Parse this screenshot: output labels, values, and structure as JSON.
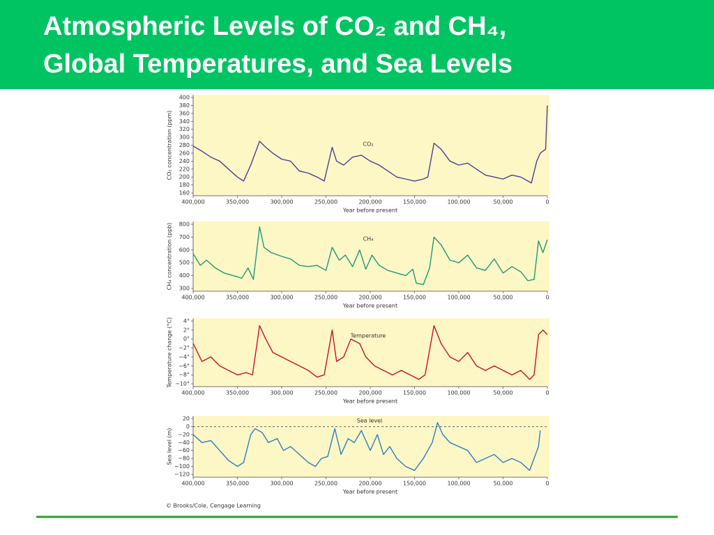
{
  "slide": {
    "title": [
      "Atmospheric Levels of CO₂ and CH₄,",
      "Global Temperatures, and Sea Levels"
    ],
    "credit": "© Brooks/Cole, Cengage Learning"
  },
  "chart_data": [
    {
      "type": "line",
      "ylabel": "CO₂ concentration (ppm)",
      "xlabel": "Year before present",
      "xlim": [
        400000,
        0
      ],
      "ylim": [
        160,
        400
      ],
      "xticks": [
        {
          "value": 400000,
          "label": "400,000"
        },
        {
          "value": 350000,
          "label": "350,000"
        },
        {
          "value": 300000,
          "label": "300,000"
        },
        {
          "value": 250000,
          "label": "250,000"
        },
        {
          "value": 200000,
          "label": "200,000"
        },
        {
          "value": 150000,
          "label": "150,000"
        },
        {
          "value": 100000,
          "label": "100,000"
        },
        {
          "value": 50000,
          "label": "50,000"
        },
        0
      ],
      "yticks": [
        160,
        180,
        200,
        220,
        240,
        260,
        280,
        300,
        320,
        340,
        360,
        380,
        400
      ],
      "x": [
        400000,
        390000,
        380000,
        370000,
        360000,
        350000,
        343000,
        335000,
        325000,
        318000,
        310000,
        300000,
        290000,
        280000,
        270000,
        260000,
        252000,
        243000,
        238000,
        230000,
        220000,
        210000,
        200000,
        190000,
        180000,
        170000,
        160000,
        150000,
        140000,
        135000,
        128000,
        120000,
        110000,
        100000,
        90000,
        80000,
        70000,
        60000,
        50000,
        40000,
        30000,
        22000,
        18000,
        12000,
        8000,
        2000,
        0
      ],
      "series": [
        {
          "name": "CO₂",
          "color": "#4b3f93",
          "values": [
            278,
            265,
            250,
            240,
            220,
            200,
            190,
            230,
            290,
            275,
            260,
            245,
            240,
            215,
            210,
            200,
            190,
            275,
            240,
            230,
            250,
            255,
            240,
            230,
            215,
            200,
            195,
            190,
            195,
            200,
            285,
            270,
            240,
            230,
            235,
            220,
            205,
            200,
            195,
            205,
            200,
            190,
            185,
            240,
            260,
            270,
            380
          ]
        }
      ]
    },
    {
      "type": "line",
      "ylabel": "CH₄ concentration (ppb)",
      "xlabel": "Year before present",
      "xlim": [
        400000,
        0
      ],
      "ylim": [
        300,
        800
      ],
      "xticks": [
        {
          "value": 400000,
          "label": "400,000"
        },
        {
          "value": 350000,
          "label": "350,000"
        },
        {
          "value": 300000,
          "label": "300,000"
        },
        {
          "value": 250000,
          "label": "250,000"
        },
        {
          "value": 200000,
          "label": "200,000"
        },
        {
          "value": 150000,
          "label": "150,000"
        },
        {
          "value": 100000,
          "label": "100,000"
        },
        {
          "value": 50000,
          "label": "50,000"
        },
        0
      ],
      "yticks": [
        300,
        400,
        500,
        600,
        700,
        800
      ],
      "x": [
        400000,
        392000,
        385000,
        375000,
        365000,
        355000,
        345000,
        338000,
        332000,
        325000,
        320000,
        312000,
        300000,
        290000,
        280000,
        270000,
        260000,
        250000,
        243000,
        235000,
        228000,
        220000,
        212000,
        205000,
        198000,
        190000,
        180000,
        170000,
        160000,
        152000,
        148000,
        140000,
        133000,
        128000,
        120000,
        110000,
        100000,
        90000,
        80000,
        70000,
        60000,
        50000,
        40000,
        30000,
        22000,
        15000,
        10000,
        5000,
        0
      ],
      "series": [
        {
          "name": "CH₄",
          "color": "#1c9a78",
          "values": [
            570,
            480,
            520,
            460,
            420,
            400,
            380,
            460,
            370,
            780,
            620,
            580,
            550,
            530,
            480,
            470,
            480,
            440,
            620,
            520,
            560,
            470,
            600,
            450,
            560,
            480,
            440,
            420,
            400,
            450,
            340,
            330,
            460,
            700,
            640,
            520,
            500,
            560,
            460,
            440,
            530,
            420,
            470,
            430,
            360,
            370,
            670,
            580,
            680
          ]
        }
      ]
    },
    {
      "type": "line",
      "ylabel": "Temperature change (°C)",
      "xlabel": "Year before present",
      "xlim": [
        400000,
        0
      ],
      "ylim": [
        -10,
        4
      ],
      "xticks": [
        {
          "value": 400000,
          "label": "400,000"
        },
        {
          "value": 350000,
          "label": "350,000"
        },
        {
          "value": 300000,
          "label": "300,000"
        },
        {
          "value": 250000,
          "label": "250,000"
        },
        {
          "value": 200000,
          "label": "200,000"
        },
        {
          "value": 150000,
          "label": "150,000"
        },
        {
          "value": 100000,
          "label": "100,000"
        },
        {
          "value": 50000,
          "label": "50,000"
        },
        0
      ],
      "yticks": [
        {
          "value": -10,
          "label": "−10°"
        },
        {
          "value": -8,
          "label": "−8°"
        },
        {
          "value": -6,
          "label": "−6°"
        },
        {
          "value": -4,
          "label": "−4°"
        },
        {
          "value": -2,
          "label": "−2°"
        },
        {
          "value": 0,
          "label": "0°"
        },
        {
          "value": 2,
          "label": "2°"
        },
        {
          "value": 4,
          "label": "4°"
        }
      ],
      "x": [
        400000,
        390000,
        380000,
        370000,
        360000,
        350000,
        340000,
        333000,
        325000,
        318000,
        310000,
        300000,
        290000,
        280000,
        270000,
        260000,
        252000,
        243000,
        238000,
        230000,
        222000,
        212000,
        205000,
        195000,
        185000,
        175000,
        165000,
        155000,
        145000,
        138000,
        128000,
        120000,
        110000,
        100000,
        90000,
        80000,
        70000,
        60000,
        50000,
        40000,
        30000,
        20000,
        15000,
        10000,
        5000,
        0
      ],
      "series": [
        {
          "name": "Temperature",
          "color": "#c8102e",
          "values": [
            -1,
            -5,
            -4,
            -6,
            -7,
            -8,
            -7.5,
            -8,
            3,
            0,
            -3,
            -4,
            -5,
            -6,
            -7,
            -8.5,
            -8,
            2,
            -5,
            -4,
            0,
            -1,
            -4,
            -6,
            -7,
            -8,
            -7,
            -8,
            -9,
            -8,
            3,
            -1,
            -4,
            -5,
            -3,
            -6,
            -7,
            -6,
            -7,
            -8,
            -7,
            -9,
            -8,
            1,
            2,
            1
          ]
        }
      ]
    },
    {
      "type": "line",
      "ylabel": "Sea level (m)",
      "xlabel": "Year before present",
      "xlim": [
        400000,
        0
      ],
      "ylim": [
        -120,
        20
      ],
      "hline": 0,
      "xticks": [
        {
          "value": 400000,
          "label": "400,000"
        },
        {
          "value": 350000,
          "label": "350,000"
        },
        {
          "value": 300000,
          "label": "300,000"
        },
        {
          "value": 250000,
          "label": "250,000"
        },
        {
          "value": 200000,
          "label": "200,000"
        },
        {
          "value": 150000,
          "label": "150,000"
        },
        {
          "value": 100000,
          "label": "100,000"
        },
        {
          "value": 50000,
          "label": "50,000"
        },
        0
      ],
      "yticks": [
        {
          "value": -120,
          "label": "−120"
        },
        {
          "value": -100,
          "label": "−100"
        },
        {
          "value": -80,
          "label": "−80"
        },
        {
          "value": -60,
          "label": "−60"
        },
        {
          "value": -40,
          "label": "−40"
        },
        {
          "value": -20,
          "label": "−20"
        },
        0,
        20
      ],
      "x": [
        400000,
        390000,
        380000,
        370000,
        360000,
        350000,
        343000,
        335000,
        330000,
        322000,
        315000,
        305000,
        298000,
        290000,
        280000,
        270000,
        262000,
        255000,
        248000,
        240000,
        233000,
        225000,
        218000,
        210000,
        200000,
        192000,
        185000,
        178000,
        170000,
        160000,
        150000,
        140000,
        130000,
        124000,
        118000,
        110000,
        100000,
        90000,
        80000,
        70000,
        60000,
        50000,
        40000,
        30000,
        20000,
        15000,
        10000,
        8000
      ],
      "series": [
        {
          "name": "Sea level",
          "color": "#2a7fc4",
          "values": [
            -20,
            -40,
            -35,
            -60,
            -85,
            -100,
            -90,
            -20,
            -5,
            -15,
            -40,
            -30,
            -60,
            -50,
            -70,
            -90,
            -100,
            -80,
            -75,
            -5,
            -70,
            -30,
            -40,
            -10,
            -60,
            -20,
            -70,
            -50,
            -80,
            -100,
            -110,
            -80,
            -40,
            10,
            -20,
            -40,
            -50,
            -60,
            -90,
            -80,
            -70,
            -90,
            -80,
            -90,
            -110,
            -80,
            -50,
            -10
          ]
        }
      ]
    }
  ]
}
